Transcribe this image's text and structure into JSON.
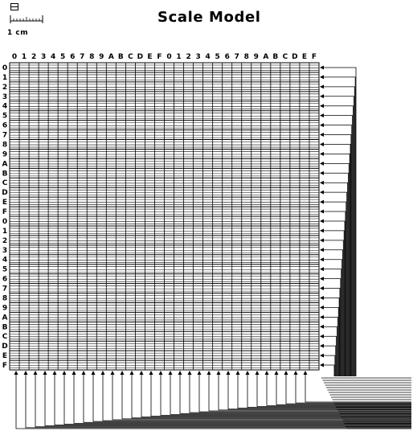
{
  "title": "Scale Model",
  "scale": {
    "label": "1 cm"
  },
  "axes": {
    "column_labels": [
      "0",
      "1",
      "2",
      "3",
      "4",
      "5",
      "6",
      "7",
      "8",
      "9",
      "A",
      "B",
      "C",
      "D",
      "E",
      "F",
      "0",
      "1",
      "2",
      "3",
      "4",
      "5",
      "6",
      "7",
      "8",
      "9",
      "A",
      "B",
      "C",
      "D",
      "E",
      "F"
    ],
    "row_labels": [
      "0",
      "1",
      "2",
      "3",
      "4",
      "5",
      "6",
      "7",
      "8",
      "9",
      "A",
      "B",
      "C",
      "D",
      "E",
      "F",
      "0",
      "1",
      "2",
      "3",
      "4",
      "5",
      "6",
      "7",
      "8",
      "9",
      "A",
      "B",
      "C",
      "D",
      "E",
      "F"
    ]
  }
}
